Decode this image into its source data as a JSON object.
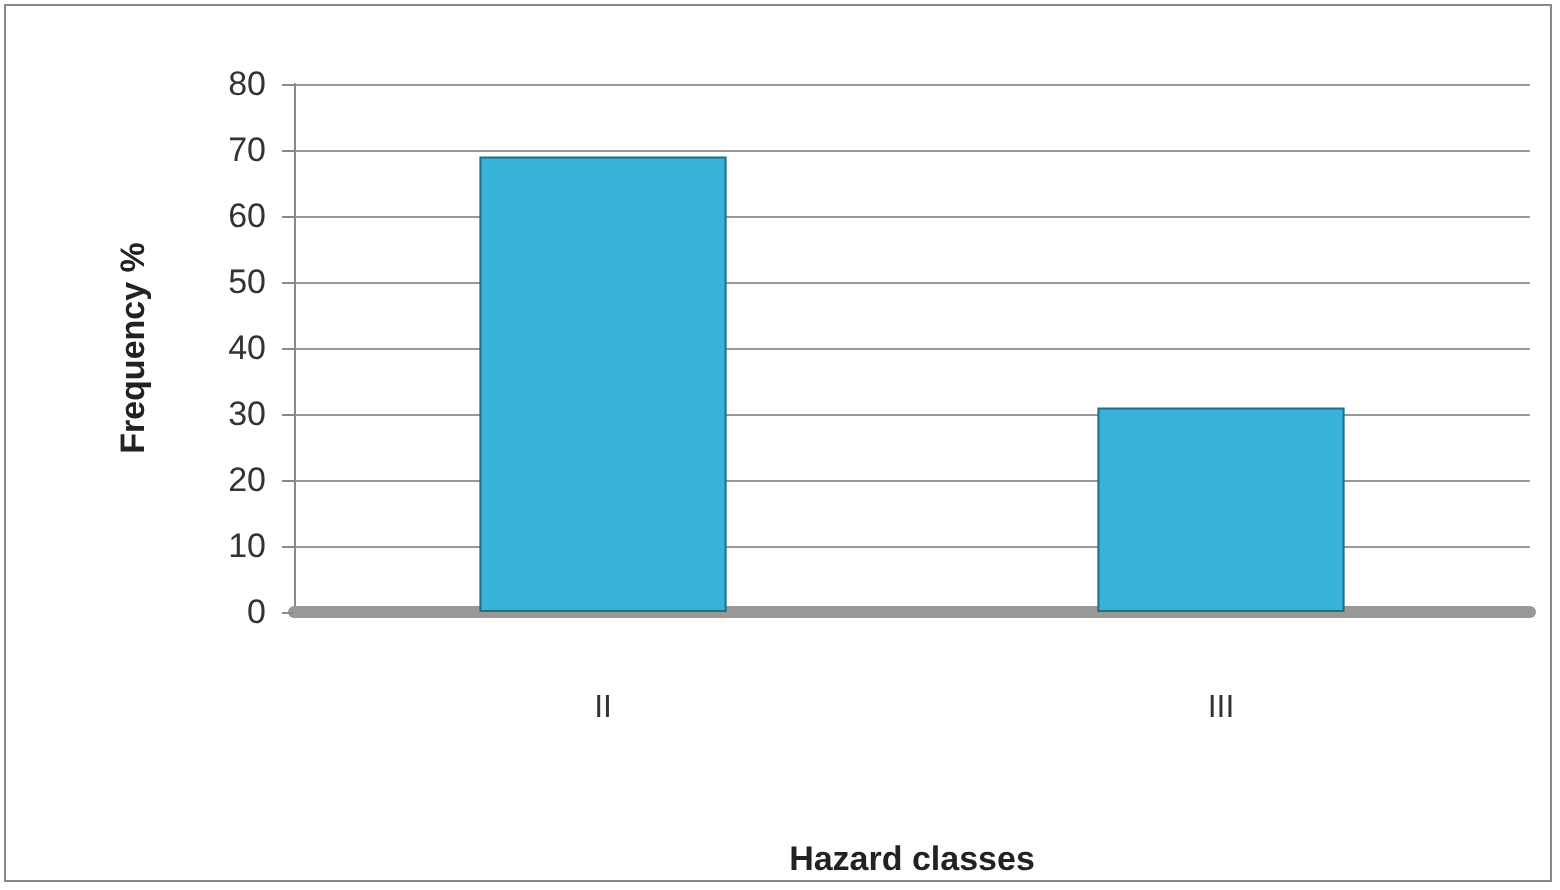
{
  "chart_data": {
    "type": "bar",
    "xlabel": "Hazard classes",
    "ylabel": "Frequency %",
    "categories": [
      "II",
      "III"
    ],
    "values": [
      69,
      31
    ],
    "color": "#38b2d8",
    "ylim": [
      0,
      80
    ],
    "yticks": [
      0,
      10,
      20,
      30,
      40,
      50,
      60,
      70,
      80
    ],
    "grid": "y"
  }
}
